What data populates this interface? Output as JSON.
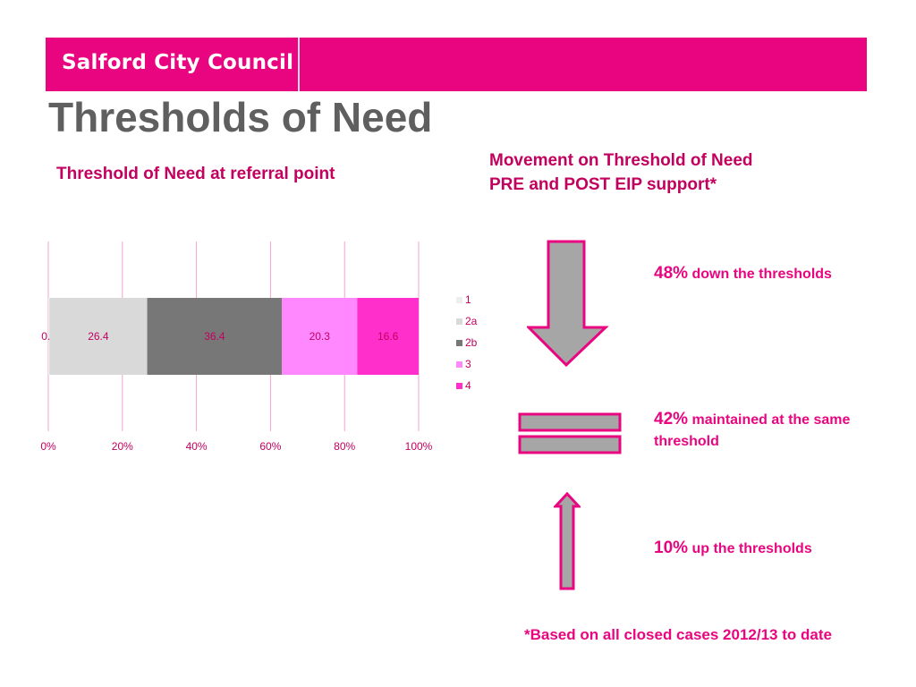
{
  "header": {
    "logo_text": "Salford City Council",
    "brand_color": "#e8057f"
  },
  "title": "Thresholds of Need",
  "left_heading": "Threshold of Need at referral point",
  "right_heading_line1": "Movement on Threshold of Need",
  "right_heading_line2": "PRE and POST EIP support*",
  "chart_data": {
    "type": "bar",
    "orientation": "horizontal",
    "stacked": "percent",
    "categories": [
      ""
    ],
    "series": [
      {
        "name": "1",
        "values": [
          0.3
        ],
        "color": "#eeeeee"
      },
      {
        "name": "2a",
        "values": [
          26.4
        ],
        "color": "#d9d9d9"
      },
      {
        "name": "2b",
        "values": [
          36.4
        ],
        "color": "#777777"
      },
      {
        "name": "3",
        "values": [
          20.3
        ],
        "color": "#ff88ff"
      },
      {
        "name": "4",
        "values": [
          16.6
        ],
        "color": "#ff2fcc"
      }
    ],
    "xticks": [
      "0%",
      "20%",
      "40%",
      "60%",
      "80%",
      "100%"
    ],
    "xlim": [
      0,
      100
    ],
    "grid": true,
    "legend": "right"
  },
  "movement": [
    {
      "pct": "48%",
      "text": "down the thresholds",
      "icon": "down-arrow-icon"
    },
    {
      "pct": "42%",
      "text": "maintained at the same threshold",
      "icon": "equals-icon"
    },
    {
      "pct": "10%",
      "text": "up the thresholds",
      "icon": "up-arrow-icon"
    }
  ],
  "footnote": "*Based on all closed cases 2012/13 to date"
}
